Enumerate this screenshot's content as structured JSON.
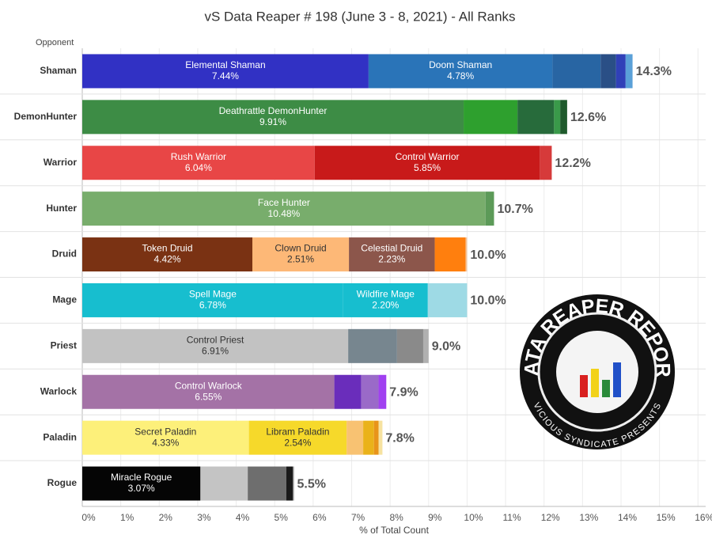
{
  "chart_data": {
    "type": "bar",
    "orientation": "horizontal",
    "stacked": true,
    "title": "vS Data Reaper # 198 (June 3 - 8, 2021) - All Ranks",
    "category_header": "Opponent",
    "xlabel": "% of Total Count",
    "xlim": [
      0,
      16.2
    ],
    "xticks": [
      {
        "value": 0,
        "label": "0%"
      },
      {
        "value": 1,
        "label": "1%"
      },
      {
        "value": 2,
        "label": "2%"
      },
      {
        "value": 3,
        "label": "3%"
      },
      {
        "value": 4,
        "label": "4%"
      },
      {
        "value": 5,
        "label": "5%"
      },
      {
        "value": 6,
        "label": "6%"
      },
      {
        "value": 7,
        "label": "7%"
      },
      {
        "value": 8,
        "label": "8%"
      },
      {
        "value": 9,
        "label": "9%"
      },
      {
        "value": 10,
        "label": "10%"
      },
      {
        "value": 11,
        "label": "11%"
      },
      {
        "value": 12,
        "label": "12%"
      },
      {
        "value": 13,
        "label": "13%"
      },
      {
        "value": 14,
        "label": "14%"
      },
      {
        "value": 15,
        "label": "15%"
      },
      {
        "value": 16,
        "label": "16%"
      }
    ],
    "grid": true,
    "bars": [
      {
        "category": "Shaman",
        "total": 14.3,
        "total_label": "14.3%",
        "segments": [
          {
            "name": "Elemental Shaman",
            "value": 7.44,
            "value_label": "7.44%",
            "color": "#3131c4"
          },
          {
            "name": "Doom Shaman",
            "value": 4.78,
            "value_label": "4.78%",
            "color": "#2a74b8"
          },
          {
            "value": 1.25,
            "color": "#2865a3"
          },
          {
            "value": 0.4,
            "color": "#2a4f86"
          },
          {
            "value": 0.25,
            "color": "#3040b8"
          },
          {
            "value": 0.18,
            "color": "#5aa0d8"
          }
        ]
      },
      {
        "category": "DemonHunter",
        "total": 12.6,
        "total_label": "12.6%",
        "segments": [
          {
            "name": "Deathrattle DemonHunter",
            "value": 9.91,
            "value_label": "9.91%",
            "color": "#3d8c45"
          },
          {
            "value": 1.4,
            "color": "#2ea02e"
          },
          {
            "value": 0.95,
            "color": "#276b3b"
          },
          {
            "value": 0.16,
            "color": "#3a9a4a"
          },
          {
            "value": 0.18,
            "color": "#1f5a2c"
          }
        ]
      },
      {
        "category": "Warrior",
        "total": 12.2,
        "total_label": "12.2%",
        "segments": [
          {
            "name": "Rush Warrior",
            "value": 6.04,
            "value_label": "6.04%",
            "color": "#e84646"
          },
          {
            "name": "Control Warrior",
            "value": 5.85,
            "value_label": "5.85%",
            "color": "#c81a1a"
          },
          {
            "value": 0.31,
            "color": "#d63a3a"
          }
        ]
      },
      {
        "category": "Hunter",
        "total": 10.7,
        "total_label": "10.7%",
        "segments": [
          {
            "name": "Face Hunter",
            "value": 10.48,
            "value_label": "10.48%",
            "color": "#78ad6c"
          },
          {
            "value": 0.22,
            "color": "#5c9a58"
          }
        ]
      },
      {
        "category": "Druid",
        "total": 10.0,
        "total_label": "10.0%",
        "segments": [
          {
            "name": "Token Druid",
            "value": 4.42,
            "value_label": "4.42%",
            "color": "#7a3213"
          },
          {
            "name": "Clown Druid",
            "value": 2.51,
            "value_label": "2.51%",
            "color": "#fdb877"
          },
          {
            "name": "Celestial Druid",
            "value": 2.23,
            "value_label": "2.23%",
            "color": "#8c564b"
          },
          {
            "value": 0.8,
            "color": "#ff7f0e"
          },
          {
            "value": 0.04,
            "color": "#f5c49a"
          }
        ]
      },
      {
        "category": "Mage",
        "total": 10.0,
        "total_label": "10.0%",
        "segments": [
          {
            "name": "Spell Mage",
            "value": 6.78,
            "value_label": "6.78%",
            "color": "#17becf"
          },
          {
            "name": "Wildfire Mage",
            "value": 2.2,
            "value_label": "2.20%",
            "color": "#17becf"
          },
          {
            "value": 1.02,
            "color": "#9edae5"
          }
        ]
      },
      {
        "category": "Priest",
        "total": 9.0,
        "total_label": "9.0%",
        "segments": [
          {
            "name": "Control Priest",
            "value": 6.91,
            "value_label": "6.91%",
            "color": "#c2c2c2"
          },
          {
            "value": 1.27,
            "color": "#77868f"
          },
          {
            "value": 0.68,
            "color": "#8a8a8a"
          },
          {
            "value": 0.14,
            "color": "#b0b0b0"
          }
        ]
      },
      {
        "category": "Warlock",
        "total": 7.9,
        "total_label": "7.9%",
        "segments": [
          {
            "name": "Control Warlock",
            "value": 6.55,
            "value_label": "6.55%",
            "color": "#a472a6"
          },
          {
            "value": 0.7,
            "color": "#6a2dbb"
          },
          {
            "value": 0.45,
            "color": "#9a6ac8"
          },
          {
            "value": 0.2,
            "color": "#a040f0"
          }
        ]
      },
      {
        "category": "Paladin",
        "total": 7.8,
        "total_label": "7.8%",
        "segments": [
          {
            "name": "Secret Paladin",
            "value": 4.33,
            "value_label": "4.33%",
            "color": "#fdf07a"
          },
          {
            "name": "Libram Paladin",
            "value": 2.54,
            "value_label": "2.54%",
            "color": "#f6d92a"
          },
          {
            "value": 0.43,
            "color": "#f8c272"
          },
          {
            "value": 0.28,
            "color": "#eab21a"
          },
          {
            "value": 0.12,
            "color": "#e8941a"
          },
          {
            "value": 0.1,
            "color": "#f6e2a0"
          }
        ]
      },
      {
        "category": "Rogue",
        "total": 5.5,
        "total_label": "5.5%",
        "segments": [
          {
            "name": "Miracle Rogue",
            "value": 3.07,
            "value_label": "3.07%",
            "color": "#050505"
          },
          {
            "value": 1.23,
            "color": "#c4c4c4"
          },
          {
            "value": 1.0,
            "color": "#6e6e6e"
          },
          {
            "value": 0.17,
            "color": "#1a1a1a"
          },
          {
            "value": 0.03,
            "color": "#888888"
          }
        ]
      }
    ]
  },
  "logo": {
    "title": "DATA REAPER REPORT",
    "subtitle": "VICIOUS SYNDICATE PRESENTS"
  }
}
